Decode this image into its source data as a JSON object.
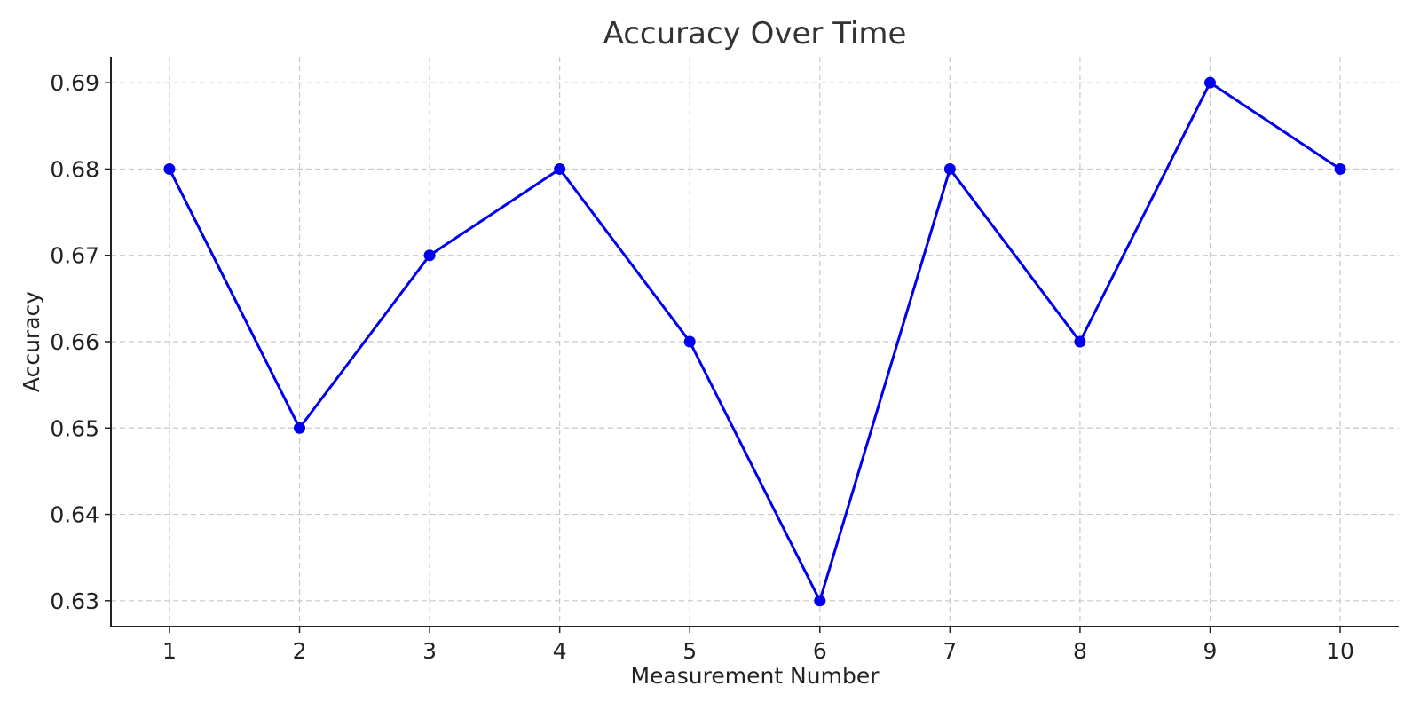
{
  "chart_data": {
    "type": "line",
    "title": "Accuracy Over Time",
    "xlabel": "Measurement Number",
    "ylabel": "Accuracy",
    "x": [
      1,
      2,
      3,
      4,
      5,
      6,
      7,
      8,
      9,
      10
    ],
    "x_tick_labels": [
      "1",
      "2",
      "3",
      "4",
      "5",
      "6",
      "7",
      "8",
      "9",
      "10"
    ],
    "y_ticks": [
      0.63,
      0.64,
      0.65,
      0.66,
      0.67,
      0.68,
      0.69
    ],
    "y_tick_labels": [
      "0.63",
      "0.64",
      "0.65",
      "0.66",
      "0.67",
      "0.68",
      "0.69"
    ],
    "xlim": [
      0.55,
      10.45
    ],
    "ylim": [
      0.627,
      0.693
    ],
    "grid": true,
    "series": [
      {
        "values": [
          0.68,
          0.65,
          0.67,
          0.68,
          0.66,
          0.63,
          0.68,
          0.66,
          0.69,
          0.68
        ],
        "color": "#0000ee",
        "marker": "circle"
      }
    ]
  }
}
